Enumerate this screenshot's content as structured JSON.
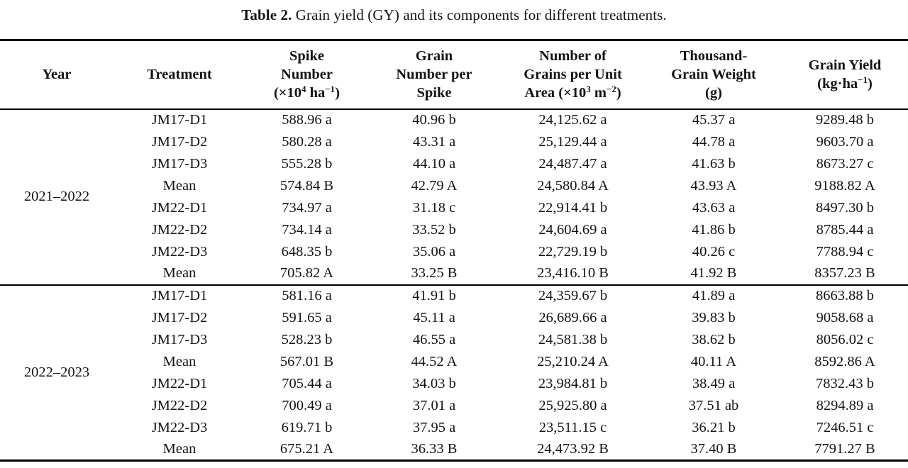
{
  "caption": {
    "label": "Table 2.",
    "text": "Grain yield (GY) and its components for different treatments."
  },
  "table": {
    "columns": [
      {
        "name": "year",
        "parts": [
          [
            "t",
            "Year"
          ]
        ]
      },
      {
        "name": "treatment",
        "parts": [
          [
            "t",
            "Treatment"
          ]
        ]
      },
      {
        "name": "spike-number",
        "parts": [
          [
            "t",
            "Spike"
          ],
          [
            "br"
          ],
          [
            "t",
            "Number"
          ],
          [
            "br"
          ],
          [
            "t",
            "(×10"
          ],
          [
            "s",
            "4"
          ],
          [
            "t",
            " ha"
          ],
          [
            "s",
            "−1"
          ],
          [
            "t",
            ")"
          ]
        ]
      },
      {
        "name": "grain-number-per-spike",
        "parts": [
          [
            "t",
            "Grain"
          ],
          [
            "br"
          ],
          [
            "t",
            "Number per"
          ],
          [
            "br"
          ],
          [
            "t",
            "Spike"
          ]
        ]
      },
      {
        "name": "grains-per-unit-area",
        "parts": [
          [
            "t",
            "Number of"
          ],
          [
            "br"
          ],
          [
            "t",
            "Grains per Unit"
          ],
          [
            "br"
          ],
          [
            "t",
            "Area (×10"
          ],
          [
            "s",
            "3"
          ],
          [
            "t",
            " m"
          ],
          [
            "s",
            "−2"
          ],
          [
            "t",
            ")"
          ]
        ]
      },
      {
        "name": "thousand-grain-weight",
        "parts": [
          [
            "t",
            "Thousand-"
          ],
          [
            "br"
          ],
          [
            "t",
            "Grain Weight"
          ],
          [
            "br"
          ],
          [
            "t",
            "(g)"
          ]
        ]
      },
      {
        "name": "grain-yield",
        "parts": [
          [
            "t",
            "Grain Yield"
          ],
          [
            "br"
          ],
          [
            "t",
            "(kg·ha"
          ],
          [
            "s",
            "−1"
          ],
          [
            "t",
            ")"
          ]
        ]
      }
    ],
    "field_order": [
      "treatment",
      "spike_number",
      "grain_number_per_spike",
      "grains_per_unit_area",
      "thousand_grain_weight",
      "grain_yield"
    ],
    "blocks": [
      {
        "year": "2021–2022",
        "rows": [
          {
            "treatment": "JM17-D1",
            "spike_number": "588.96 a",
            "grain_number_per_spike": "40.96 b",
            "grains_per_unit_area": "24,125.62 a",
            "thousand_grain_weight": "45.37 a",
            "grain_yield": "9289.48 b"
          },
          {
            "treatment": "JM17-D2",
            "spike_number": "580.28 a",
            "grain_number_per_spike": "43.31 a",
            "grains_per_unit_area": "25,129.44 a",
            "thousand_grain_weight": "44.78 a",
            "grain_yield": "9603.70 a"
          },
          {
            "treatment": "JM17-D3",
            "spike_number": "555.28 b",
            "grain_number_per_spike": "44.10 a",
            "grains_per_unit_area": "24,487.47 a",
            "thousand_grain_weight": "41.63 b",
            "grain_yield": "8673.27 c"
          },
          {
            "treatment": "Mean",
            "spike_number": "574.84 B",
            "grain_number_per_spike": "42.79 A",
            "grains_per_unit_area": "24,580.84 A",
            "thousand_grain_weight": "43.93 A",
            "grain_yield": "9188.82 A"
          },
          {
            "treatment": "JM22-D1",
            "spike_number": "734.97 a",
            "grain_number_per_spike": "31.18 c",
            "grains_per_unit_area": "22,914.41 b",
            "thousand_grain_weight": "43.63 a",
            "grain_yield": "8497.30 b"
          },
          {
            "treatment": "JM22-D2",
            "spike_number": "734.14 a",
            "grain_number_per_spike": "33.52 b",
            "grains_per_unit_area": "24,604.69 a",
            "thousand_grain_weight": "41.86 b",
            "grain_yield": "8785.44 a"
          },
          {
            "treatment": "JM22-D3",
            "spike_number": "648.35 b",
            "grain_number_per_spike": "35.06 a",
            "grains_per_unit_area": "22,729.19 b",
            "thousand_grain_weight": "40.26 c",
            "grain_yield": "7788.94 c"
          },
          {
            "treatment": "Mean",
            "spike_number": "705.82 A",
            "grain_number_per_spike": "33.25 B",
            "grains_per_unit_area": "23,416.10 B",
            "thousand_grain_weight": "41.92 B",
            "grain_yield": "8357.23 B"
          }
        ]
      },
      {
        "year": "2022–2023",
        "rows": [
          {
            "treatment": "JM17-D1",
            "spike_number": "581.16 a",
            "grain_number_per_spike": "41.91 b",
            "grains_per_unit_area": "24,359.67 b",
            "thousand_grain_weight": "41.89 a",
            "grain_yield": "8663.88 b"
          },
          {
            "treatment": "JM17-D2",
            "spike_number": "591.65 a",
            "grain_number_per_spike": "45.11 a",
            "grains_per_unit_area": "26,689.66 a",
            "thousand_grain_weight": "39.83 b",
            "grain_yield": "9058.68 a"
          },
          {
            "treatment": "JM17-D3",
            "spike_number": "528.23 b",
            "grain_number_per_spike": "46.55 a",
            "grains_per_unit_area": "24,581.38 b",
            "thousand_grain_weight": "38.62 b",
            "grain_yield": "8056.02 c"
          },
          {
            "treatment": "Mean",
            "spike_number": "567.01 B",
            "grain_number_per_spike": "44.52 A",
            "grains_per_unit_area": "25,210.24 A",
            "thousand_grain_weight": "40.11 A",
            "grain_yield": "8592.86 A"
          },
          {
            "treatment": "JM22-D1",
            "spike_number": "705.44 a",
            "grain_number_per_spike": "34.03 b",
            "grains_per_unit_area": "23,984.81 b",
            "thousand_grain_weight": "38.49 a",
            "grain_yield": "7832.43 b"
          },
          {
            "treatment": "JM22-D2",
            "spike_number": "700.49 a",
            "grain_number_per_spike": "37.01 a",
            "grains_per_unit_area": "25,925.80 a",
            "thousand_grain_weight": "37.51 ab",
            "grain_yield": "8294.89 a"
          },
          {
            "treatment": "JM22-D3",
            "spike_number": "619.71 b",
            "grain_number_per_spike": "37.95 a",
            "grains_per_unit_area": "23,511.15 c",
            "thousand_grain_weight": "36.21 b",
            "grain_yield": "7246.51 c"
          },
          {
            "treatment": "Mean",
            "spike_number": "675.21 A",
            "grain_number_per_spike": "36.33 B",
            "grains_per_unit_area": "24,473.92 B",
            "thousand_grain_weight": "37.40 B",
            "grain_yield": "7791.27 B"
          }
        ]
      }
    ]
  }
}
